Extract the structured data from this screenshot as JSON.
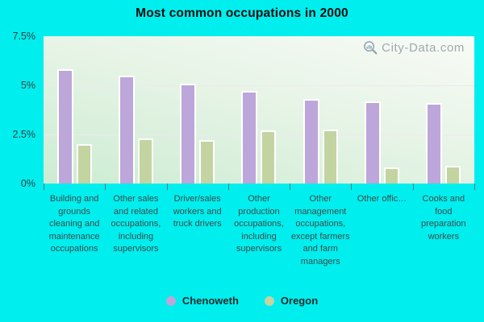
{
  "header": {
    "title": "Most common occupations in 2000"
  },
  "watermark": {
    "text": "City-Data.com"
  },
  "chart_data": {
    "type": "bar",
    "title": "Most common occupations in 2000",
    "categories": [
      "Building and grounds cleaning and maintenance occupations",
      "Other sales and related occupations, including supervisors",
      "Driver/sales workers and truck drivers",
      "Other production occupations, including supervisors",
      "Other management occupations, except farmers and farm managers",
      "Other offic…",
      "Cooks and food preparation workers"
    ],
    "series": [
      {
        "name": "Chenoweth",
        "color": "#bca6da",
        "values": [
          5.8,
          5.5,
          5.1,
          4.7,
          4.3,
          4.2,
          4.1
        ]
      },
      {
        "name": "Oregon",
        "color": "#c3d4a1",
        "values": [
          2.0,
          2.3,
          2.2,
          2.7,
          2.75,
          0.8,
          0.9
        ]
      }
    ],
    "xlabel": "",
    "ylabel": "",
    "ylim": [
      0,
      7.5
    ],
    "yticks": [
      {
        "label": "0%",
        "value": 0
      },
      {
        "label": "2.5%",
        "value": 2.5
      },
      {
        "label": "5%",
        "value": 5
      },
      {
        "label": "7.5%",
        "value": 7.5
      }
    ],
    "grid": true,
    "legend_position": "bottom"
  },
  "colors": {
    "background": "#00eeee",
    "plot_gradient_top": "#f8fbf6",
    "plot_gradient_bottom": "#ccecd3",
    "gridline": "#efe8ef",
    "bar_border": "#ffffff",
    "axis_text": "#3d4b4b",
    "tick_mark": "#567e7e",
    "watermark_text": "#9fa9b1"
  }
}
